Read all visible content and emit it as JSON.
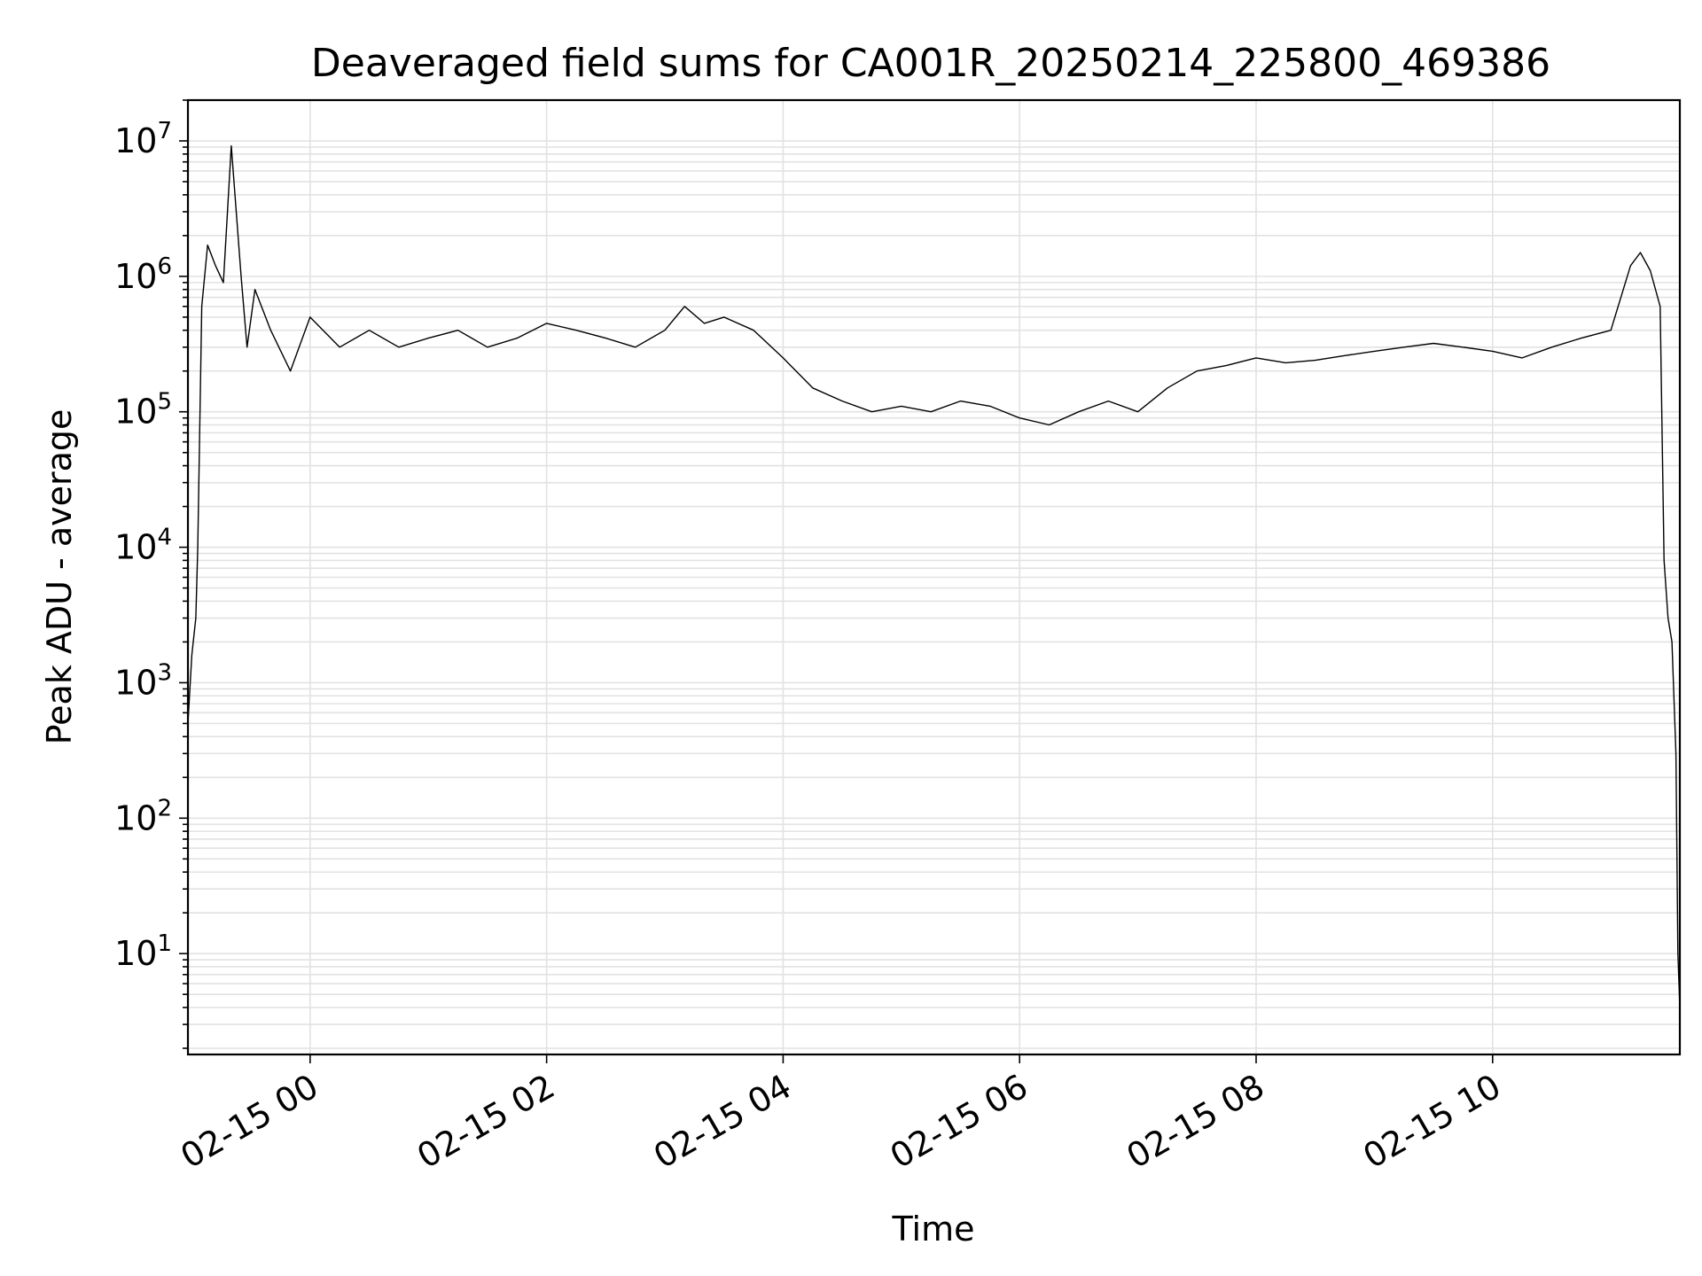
{
  "chart_data": {
    "type": "line",
    "title": "Deaveraged field sums for CA001R_20250214_225800_469386",
    "xlabel": "Time",
    "ylabel": "Peak ADU - average",
    "yscale": "log",
    "ylim": [
      1.8,
      20000000
    ],
    "xlim": [
      "02-14 22:58",
      "02-15 11:35"
    ],
    "grid": true,
    "line_color": "#000000",
    "grid_color": "#e2e2e2",
    "x_ticks": [
      {
        "label": "02-15 00",
        "time": "02-15 00:00"
      },
      {
        "label": "02-15 02",
        "time": "02-15 02:00"
      },
      {
        "label": "02-15 04",
        "time": "02-15 04:00"
      },
      {
        "label": "02-15 06",
        "time": "02-15 06:00"
      },
      {
        "label": "02-15 08",
        "time": "02-15 08:00"
      },
      {
        "label": "02-15 10",
        "time": "02-15 10:00"
      }
    ],
    "y_ticks": [
      {
        "base": "10",
        "exp": "1",
        "value": 10
      },
      {
        "base": "10",
        "exp": "2",
        "value": 100
      },
      {
        "base": "10",
        "exp": "3",
        "value": 1000
      },
      {
        "base": "10",
        "exp": "4",
        "value": 10000
      },
      {
        "base": "10",
        "exp": "5",
        "value": 100000
      },
      {
        "base": "10",
        "exp": "6",
        "value": 1000000
      },
      {
        "base": "10",
        "exp": "7",
        "value": 10000000
      }
    ],
    "series": [
      {
        "x": [
          "02-14 22:58",
          "02-14 23:00",
          "02-14 23:02",
          "02-14 23:03",
          "02-14 23:05",
          "02-14 23:08",
          "02-14 23:12",
          "02-14 23:16",
          "02-14 23:20",
          "02-14 23:25",
          "02-14 23:28",
          "02-14 23:32",
          "02-14 23:40",
          "02-14 23:50",
          "02-15 00:00",
          "02-15 00:15",
          "02-15 00:30",
          "02-15 00:45",
          "02-15 01:00",
          "02-15 01:15",
          "02-15 01:30",
          "02-15 01:45",
          "02-15 02:00",
          "02-15 02:15",
          "02-15 02:30",
          "02-15 02:45",
          "02-15 03:00",
          "02-15 03:10",
          "02-15 03:20",
          "02-15 03:30",
          "02-15 03:45",
          "02-15 04:00",
          "02-15 04:15",
          "02-15 04:30",
          "02-15 04:45",
          "02-15 05:00",
          "02-15 05:15",
          "02-15 05:30",
          "02-15 05:45",
          "02-15 06:00",
          "02-15 06:15",
          "02-15 06:30",
          "02-15 06:45",
          "02-15 07:00",
          "02-15 07:15",
          "02-15 07:30",
          "02-15 07:45",
          "02-15 08:00",
          "02-15 08:15",
          "02-15 08:30",
          "02-15 08:45",
          "02-15 09:00",
          "02-15 09:15",
          "02-15 09:30",
          "02-15 09:45",
          "02-15 10:00",
          "02-15 10:15",
          "02-15 10:30",
          "02-15 10:45",
          "02-15 11:00",
          "02-15 11:10",
          "02-15 11:15",
          "02-15 11:20",
          "02-15 11:25",
          "02-15 11:27",
          "02-15 11:29",
          "02-15 11:31",
          "02-15 11:33",
          "02-15 11:34",
          "02-15 11:35"
        ],
        "y": [
          500,
          1600,
          3000,
          10000,
          600000,
          1700000,
          1200000,
          900000,
          9200000,
          1000000,
          300000,
          800000,
          400000,
          200000,
          500000,
          300000,
          400000,
          300000,
          350000,
          400000,
          300000,
          350000,
          450000,
          400000,
          350000,
          300000,
          400000,
          600000,
          450000,
          500000,
          400000,
          250000,
          150000,
          120000,
          100000,
          110000,
          100000,
          120000,
          110000,
          90000,
          80000,
          100000,
          120000,
          100000,
          150000,
          200000,
          220000,
          250000,
          230000,
          240000,
          260000,
          280000,
          300000,
          320000,
          300000,
          280000,
          250000,
          300000,
          350000,
          400000,
          1200000,
          1500000,
          1100000,
          600000,
          8000,
          3000,
          2000,
          300,
          10,
          4
        ]
      }
    ]
  }
}
